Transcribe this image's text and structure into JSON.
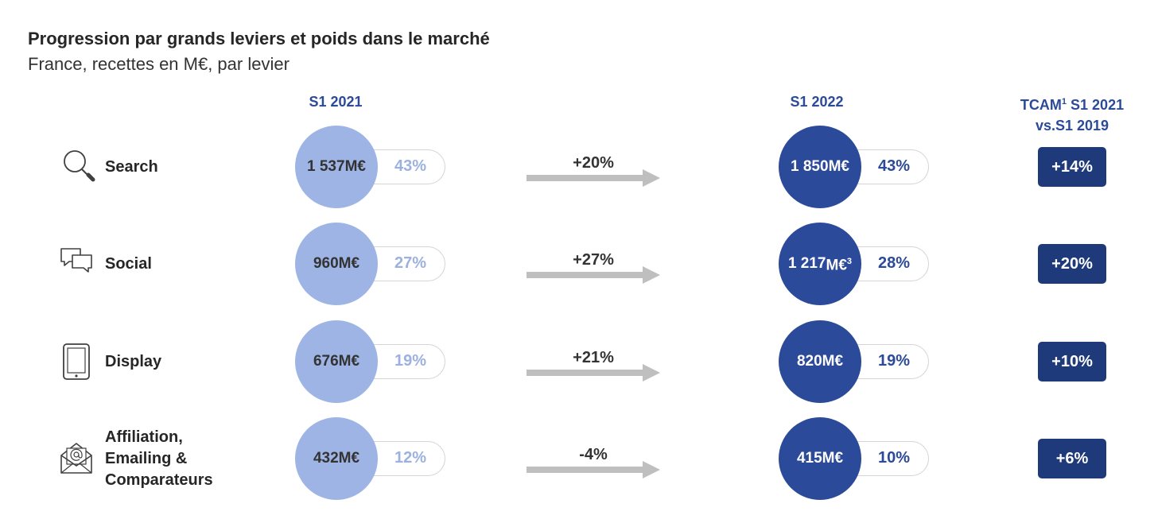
{
  "title": "Progression par grands leviers et poids dans le marché",
  "subtitle": "France, recettes en M€, par levier",
  "columns": {
    "s1_2021": "S1 2021",
    "s1_2022": "S1 2022",
    "tcam_line1_main": "TCAM",
    "tcam_line1_sup": "1",
    "tcam_line1_tail": " S1 2021",
    "tcam_line2": "vs.S1 2019"
  },
  "colors": {
    "s1_2021_circle": "#9db4e5",
    "s1_2022_circle": "#2c4a9a",
    "tcam_badge": "#1f3a7a",
    "arrow": "#bfbfbf"
  },
  "chart_data": {
    "type": "table",
    "title": "Progression par grands leviers et poids dans le marché",
    "subtitle": "France, recettes en M€, par levier",
    "rows": [
      {
        "lever": "Search",
        "icon": "search-icon",
        "s1_2021_value": "1 537",
        "s1_2021_unit": "M€",
        "s1_2021_unit_sup": "",
        "s1_2021_share": "43%",
        "growth": "+20%",
        "s1_2022_value": "1 850",
        "s1_2022_unit": "M€",
        "s1_2022_unit_sup": "",
        "s1_2022_share": "43%",
        "tcam": "+14%"
      },
      {
        "lever": "Social",
        "icon": "chat-bubbles-icon",
        "s1_2021_value": "960",
        "s1_2021_unit": "M€",
        "s1_2021_unit_sup": "",
        "s1_2021_share": "27%",
        "growth": "+27%",
        "s1_2022_value": "1 217",
        "s1_2022_unit": "M€",
        "s1_2022_unit_sup": "3",
        "s1_2022_share": "28%",
        "tcam": "+20%"
      },
      {
        "lever": "Display",
        "icon": "tablet-icon",
        "s1_2021_value": "676",
        "s1_2021_unit": "M€",
        "s1_2021_unit_sup": "",
        "s1_2021_share": "19%",
        "growth": "+21%",
        "s1_2022_value": "820",
        "s1_2022_unit": "M€",
        "s1_2022_unit_sup": "",
        "s1_2022_share": "19%",
        "tcam": "+10%"
      },
      {
        "lever": "Affiliation, Emailing & Comparateurs",
        "lever_lines": [
          "Affiliation,",
          "Emailing &",
          "Comparateurs"
        ],
        "icon": "email-envelope-icon",
        "s1_2021_value": "432",
        "s1_2021_unit": "M€",
        "s1_2021_unit_sup": "",
        "s1_2021_share": "12%",
        "growth": "-4%",
        "s1_2022_value": "415",
        "s1_2022_unit": "M€",
        "s1_2022_unit_sup": "",
        "s1_2022_share": "10%",
        "tcam": "+6%"
      }
    ]
  }
}
